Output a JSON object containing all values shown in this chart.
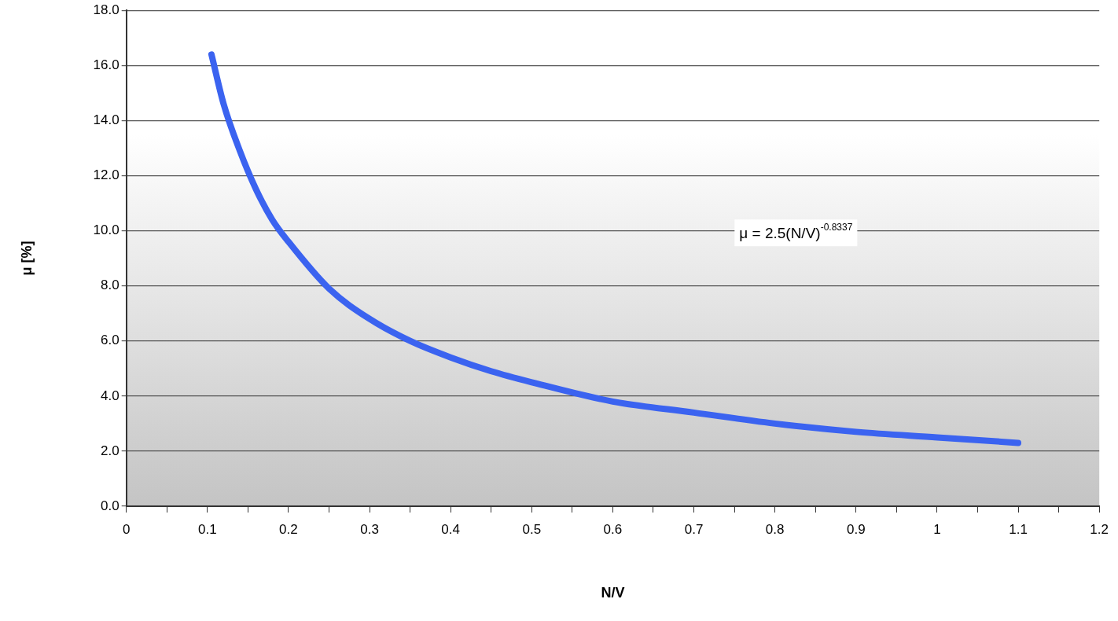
{
  "chart_data": {
    "type": "line",
    "xlabel": "N/V",
    "ylabel": "μ [%]",
    "annotations": [
      "μ = 2.5(N/V)$^{-0.8337}$"
    ],
    "series": [
      {
        "color": "#3b63f0",
        "x": [
          0.105,
          0.12,
          0.14,
          0.16,
          0.18,
          0.2,
          0.25,
          0.3,
          0.35,
          0.4,
          0.45,
          0.5,
          0.6,
          0.7,
          0.8,
          0.9,
          1.0,
          1.1
        ],
        "values": [
          16.4,
          14.6,
          12.9,
          11.5,
          10.4,
          9.6,
          7.9,
          6.8,
          6.0,
          5.4,
          4.9,
          4.5,
          3.8,
          3.4,
          3.0,
          2.7,
          2.5,
          2.3
        ]
      }
    ],
    "xlim": [
      0,
      1.2
    ],
    "xticks": [
      0,
      {
        "value": 0.05,
        "label": null
      },
      0.1,
      {
        "value": 0.15,
        "label": null
      },
      0.2,
      {
        "value": 0.25,
        "label": null
      },
      0.3,
      {
        "value": 0.35,
        "label": null
      },
      0.4,
      {
        "value": 0.45,
        "label": null
      },
      0.5,
      {
        "value": 0.55,
        "label": null
      },
      0.6,
      {
        "value": 0.65,
        "label": null
      },
      0.7,
      {
        "value": 0.75,
        "label": null
      },
      0.8,
      {
        "value": 0.85,
        "label": null
      },
      0.9,
      {
        "value": 0.95,
        "label": null
      },
      1,
      {
        "value": 1.05,
        "label": null
      },
      1.1,
      {
        "value": 1.15,
        "label": null
      },
      1.2
    ],
    "ylim": [
      0,
      18
    ],
    "yticks": [
      {
        "value": 0,
        "label": "0.0"
      },
      {
        "value": 2,
        "label": "2.0"
      },
      {
        "value": 4,
        "label": "4.0"
      },
      {
        "value": 6,
        "label": "6.0"
      },
      {
        "value": 8,
        "label": "8.0"
      },
      {
        "value": 10,
        "label": "10.0"
      },
      {
        "value": 12,
        "label": "12.0"
      },
      {
        "value": 14,
        "label": "14.0"
      },
      {
        "value": 16,
        "label": "16.0"
      },
      {
        "value": 18,
        "label": "18.0"
      }
    ],
    "grid": "y",
    "legend": false,
    "marker": "none",
    "line_style": "solid"
  }
}
